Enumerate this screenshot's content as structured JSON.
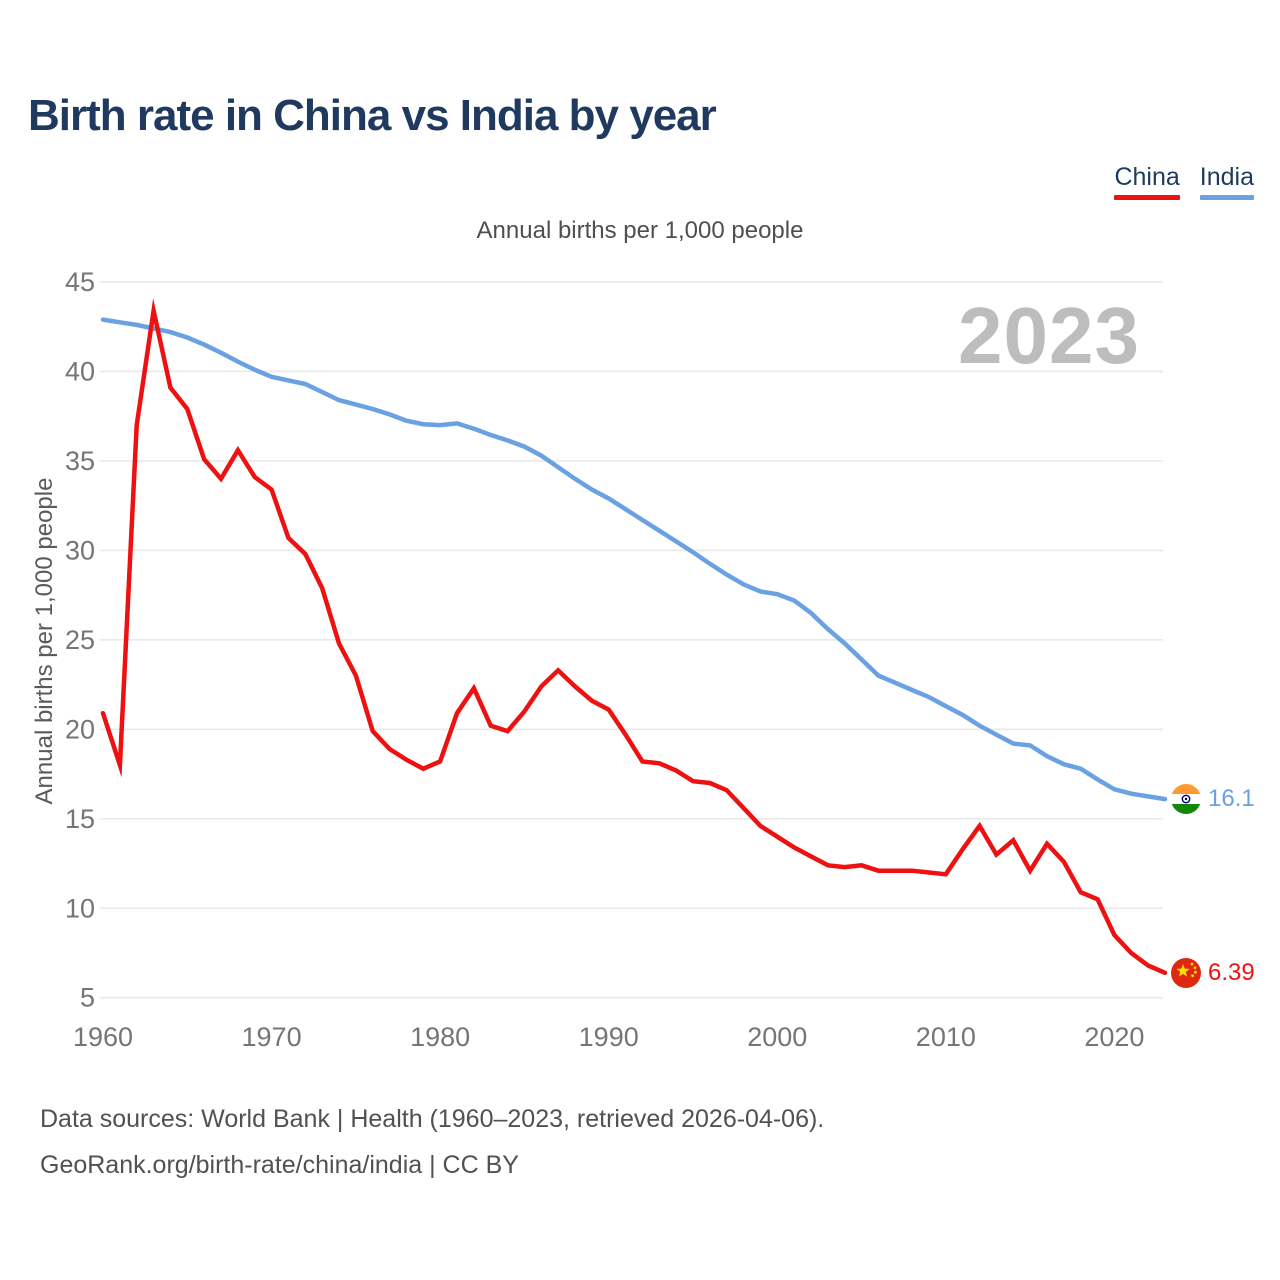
{
  "title": "Birth rate in China vs India by year",
  "subtitle": "Annual births per 1,000 people",
  "y_axis_label": "Annual births per 1,000 people",
  "watermark": "2023",
  "footer": {
    "line1": "Data sources: World Bank | Health (1960–2023, retrieved 2026-04-06).",
    "line2": "GeoRank.org/birth-rate/china/india | CC BY"
  },
  "colors": {
    "china": "#ee1111",
    "india": "#69a1e2",
    "title_text": "#1f3a5e",
    "axis_text": "#757575",
    "gridline": "#e9e9e9",
    "watermark_text": "#bdbdbd"
  },
  "chart_data": {
    "type": "line",
    "title": "Annual births per 1,000 people",
    "xlabel": "",
    "ylabel": "Annual births per 1,000 people",
    "x_years": {
      "start": 1960,
      "end": 2023,
      "step": 1
    },
    "xticks": [
      1960,
      1970,
      1980,
      1990,
      2000,
      2010,
      2020
    ],
    "yticks": [
      5,
      10,
      15,
      20,
      25,
      30,
      35,
      40,
      45
    ],
    "ylim": [
      5,
      45
    ],
    "grid": "horizontal",
    "legend_position": "top-right",
    "series": [
      {
        "name": "China",
        "color": "#ee1111",
        "flag_icon": "china-flag-icon",
        "end_label": "6.39",
        "values": [
          20.9,
          18.0,
          37.0,
          43.4,
          39.1,
          37.9,
          35.1,
          34.0,
          35.6,
          34.1,
          33.4,
          30.7,
          29.8,
          27.9,
          24.8,
          23.0,
          19.9,
          18.9,
          18.3,
          17.8,
          18.2,
          20.9,
          22.3,
          20.2,
          19.9,
          21.0,
          22.4,
          23.3,
          22.4,
          21.6,
          21.1,
          19.7,
          18.2,
          18.1,
          17.7,
          17.1,
          17.0,
          16.6,
          15.6,
          14.6,
          14.0,
          13.4,
          12.9,
          12.4,
          12.3,
          12.4,
          12.1,
          12.1,
          12.1,
          12.0,
          11.9,
          13.3,
          14.6,
          13.0,
          13.8,
          12.1,
          13.6,
          12.6,
          10.9,
          10.5,
          8.5,
          7.5,
          6.8,
          6.39
        ]
      },
      {
        "name": "India",
        "color": "#69a1e2",
        "flag_icon": "india-flag-icon",
        "end_label": "16.1",
        "values": [
          42.9,
          42.75,
          42.6,
          42.4,
          42.2,
          41.9,
          41.5,
          41.05,
          40.55,
          40.1,
          39.7,
          39.5,
          39.3,
          38.85,
          38.4,
          38.15,
          37.9,
          37.6,
          37.25,
          37.05,
          37.0,
          37.1,
          36.8,
          36.45,
          36.15,
          35.8,
          35.3,
          34.65,
          34.0,
          33.4,
          32.9,
          32.3,
          31.7,
          31.1,
          30.5,
          29.9,
          29.25,
          28.65,
          28.1,
          27.7,
          27.55,
          27.2,
          26.5,
          25.6,
          24.8,
          23.9,
          23.0,
          22.6,
          22.2,
          21.8,
          21.3,
          20.8,
          20.2,
          19.7,
          19.2,
          19.1,
          18.5,
          18.05,
          17.8,
          17.2,
          16.65,
          16.4,
          16.25,
          16.1
        ]
      }
    ]
  }
}
